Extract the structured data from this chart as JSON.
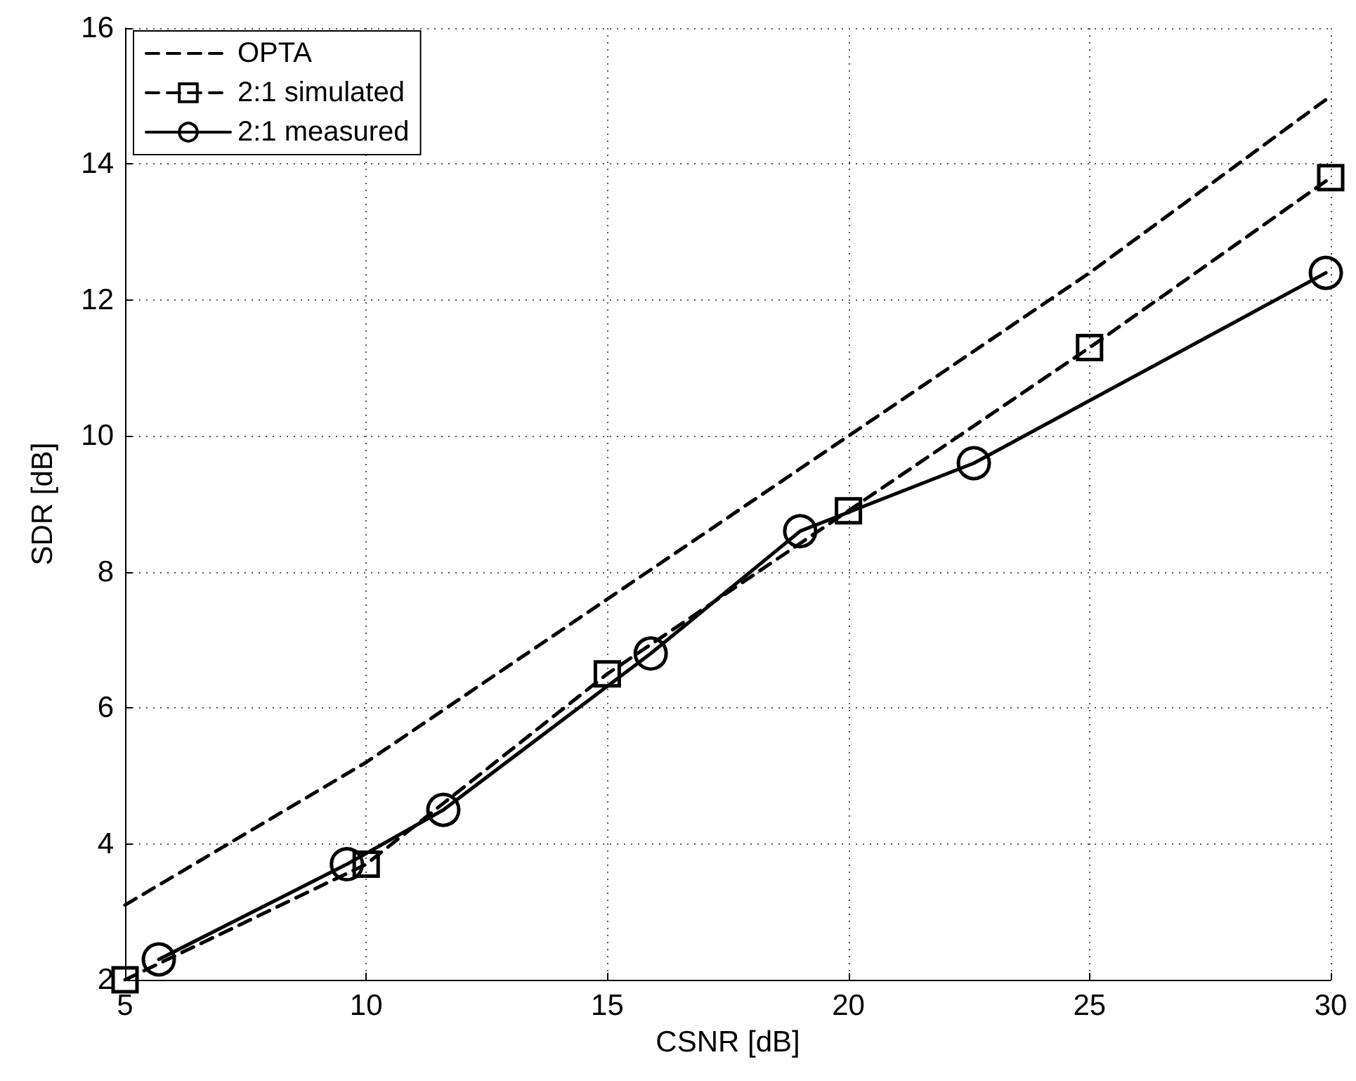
{
  "chart_data": {
    "type": "line",
    "xlabel": "CSNR [dB]",
    "ylabel": "SDR [dB]",
    "xlim": [
      5,
      30
    ],
    "xticks": [
      5,
      10,
      15,
      20,
      25,
      30
    ],
    "ylim": [
      2,
      16
    ],
    "yticks": [
      2,
      4,
      6,
      8,
      10,
      12,
      14,
      16
    ],
    "grid": true,
    "legend": "top left",
    "series": [
      {
        "name": "OPTA",
        "color": "#000000",
        "line_style": "dashed",
        "marker": "none",
        "x": [
          5,
          10,
          15,
          20,
          25,
          30
        ],
        "values": [
          3.1,
          5.2,
          7.6,
          10.0,
          12.4,
          15.0
        ]
      },
      {
        "name": "2:1 simulated",
        "color": "#000000",
        "line_style": "dashed",
        "marker": "square",
        "x": [
          5,
          10,
          15,
          20,
          25,
          30
        ],
        "values": [
          2.0,
          3.7,
          6.5,
          8.9,
          11.3,
          13.8
        ]
      },
      {
        "name": "2:1 measured",
        "color": "#000000",
        "line_style": "solid",
        "marker": "circle",
        "x": [
          5.7,
          9.6,
          11.6,
          15.9,
          19.0,
          22.6,
          29.9
        ],
        "values": [
          2.3,
          3.7,
          4.5,
          6.8,
          8.6,
          9.6,
          12.4
        ]
      }
    ]
  }
}
